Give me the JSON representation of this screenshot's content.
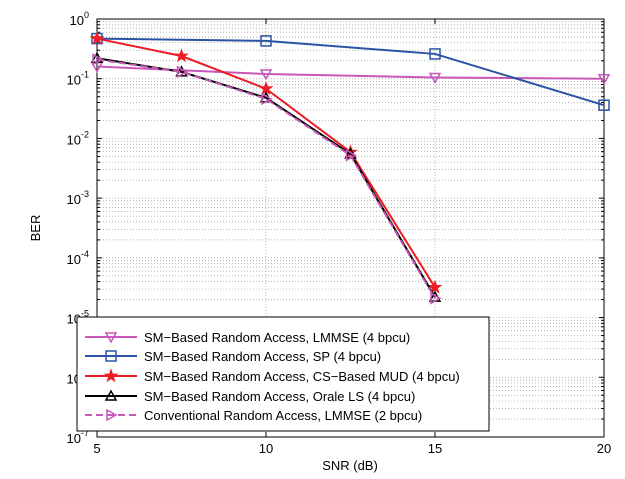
{
  "chart_data": {
    "type": "line",
    "xlabel": "SNR (dB)",
    "ylabel": "BER",
    "xlim": [
      5,
      20
    ],
    "ylim": [
      1e-07,
      1
    ],
    "yscale": "log",
    "grid": true,
    "legend_position": "bottom-left",
    "x_ticks": [
      "5",
      "10",
      "15",
      "20"
    ],
    "y_ticks": [
      {
        "base": "10",
        "exp": "0"
      },
      {
        "base": "10",
        "exp": "-1"
      },
      {
        "base": "10",
        "exp": "-2"
      },
      {
        "base": "10",
        "exp": "-3"
      },
      {
        "base": "10",
        "exp": "-4"
      },
      {
        "base": "10",
        "exp": "-5"
      },
      {
        "base": "10",
        "exp": "-6"
      },
      {
        "base": "10",
        "exp": "-7"
      }
    ],
    "series": [
      {
        "name": "SM−Based Random Access, LMMSE (4 bpcu)",
        "color": "#c757b8",
        "marker": "triangle-down",
        "dashed": false,
        "x": [
          5,
          10,
          15,
          20
        ],
        "y": [
          0.16,
          0.12,
          0.105,
          0.1
        ]
      },
      {
        "name": "SM−Based Random Access, SP (4 bpcu)",
        "color": "#2b54a5",
        "marker": "square",
        "dashed": false,
        "x": [
          5,
          10,
          15,
          20
        ],
        "y": [
          0.47,
          0.43,
          0.26,
          0.036
        ]
      },
      {
        "name": "SM−Based Random Access, CS−Based MUD (4 bpcu)",
        "color": "#ee1c25",
        "marker": "star",
        "dashed": false,
        "x": [
          5,
          7.5,
          10,
          12.5,
          15
        ],
        "y": [
          0.47,
          0.24,
          0.068,
          0.0059,
          3.2e-05
        ]
      },
      {
        "name": "SM−Based Random Access, Orale LS (4 bpcu)",
        "color": "#000000",
        "marker": "triangle-up",
        "dashed": false,
        "x": [
          5,
          7.5,
          10,
          12.5,
          15
        ],
        "y": [
          0.22,
          0.13,
          0.048,
          0.0055,
          2.2e-05
        ]
      },
      {
        "name": "Conventional Random Access, LMMSE (2 bpcu)",
        "color": "#c757b8",
        "marker": "triangle-right",
        "dashed": true,
        "x": [
          5,
          7.5,
          10,
          12.5,
          15
        ],
        "y": [
          0.21,
          0.13,
          0.046,
          0.0052,
          2.1e-05
        ]
      }
    ]
  }
}
